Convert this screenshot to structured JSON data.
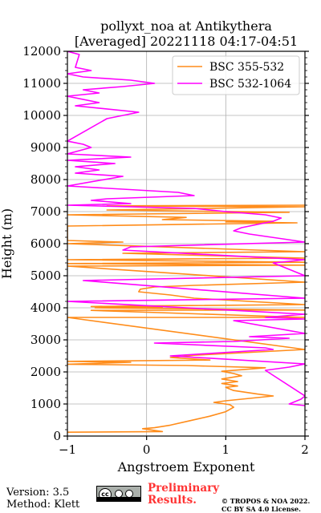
{
  "chart_data": {
    "type": "line",
    "title_lines": [
      "pollyxt_noa at Antikythera",
      "[Averaged] 20221118 04:17-04:51"
    ],
    "xlabel": "Angstroem Exponent",
    "ylabel": "Height (m)",
    "xlim": [
      -1,
      2
    ],
    "ylim": [
      0,
      12000
    ],
    "xticks": [
      -1,
      0,
      1,
      2
    ],
    "yticks": [
      0,
      1000,
      2000,
      3000,
      4000,
      5000,
      6000,
      7000,
      8000,
      9000,
      10000,
      11000,
      12000
    ],
    "grid": true,
    "legend_position": "top-right",
    "series": [
      {
        "name": "BSC 355-532",
        "color": "#ff8c1a",
        "points": [
          [
            -1.0,
            120
          ],
          [
            0.2,
            140
          ],
          [
            -0.05,
            230
          ],
          [
            0.1,
            260
          ],
          [
            0.3,
            340
          ],
          [
            0.55,
            480
          ],
          [
            0.8,
            620
          ],
          [
            1.0,
            760
          ],
          [
            1.1,
            900
          ],
          [
            1.05,
            980
          ],
          [
            0.85,
            1050
          ],
          [
            1.0,
            1100
          ],
          [
            1.4,
            1200
          ],
          [
            1.6,
            1250
          ],
          [
            1.4,
            1310
          ],
          [
            1.1,
            1420
          ],
          [
            1.0,
            1520
          ],
          [
            1.15,
            1560
          ],
          [
            0.95,
            1640
          ],
          [
            1.15,
            1700
          ],
          [
            0.95,
            1780
          ],
          [
            1.2,
            1880
          ],
          [
            1.1,
            1950
          ],
          [
            0.95,
            2020
          ],
          [
            1.25,
            2080
          ],
          [
            1.5,
            2130
          ],
          [
            0.5,
            2200
          ],
          [
            -1.0,
            2240
          ],
          [
            -0.2,
            2300
          ],
          [
            -1.0,
            2330
          ],
          [
            0.8,
            2370
          ],
          [
            0.3,
            2450
          ],
          [
            0.6,
            2520
          ],
          [
            2.0,
            2700
          ],
          [
            -1.0,
            3700
          ],
          [
            2.0,
            3700
          ],
          [
            -0.7,
            3920
          ],
          [
            2.0,
            3930
          ],
          [
            -0.65,
            4000
          ],
          [
            0.2,
            4020
          ],
          [
            -0.7,
            4040
          ],
          [
            0.0,
            4060
          ],
          [
            2.0,
            4100
          ],
          [
            0.6,
            4300
          ],
          [
            0.3,
            4400
          ],
          [
            -0.1,
            4500
          ],
          [
            -0.08,
            4580
          ],
          [
            0.1,
            4650
          ],
          [
            0.6,
            4700
          ],
          [
            2.0,
            4800
          ],
          [
            -1.0,
            5300
          ],
          [
            2.0,
            5330
          ],
          [
            -1.0,
            5380
          ],
          [
            2.0,
            5420
          ],
          [
            -1.0,
            5500
          ],
          [
            2.0,
            5550
          ],
          [
            -0.3,
            5700
          ],
          [
            2.0,
            5750
          ],
          [
            -1.0,
            6000
          ],
          [
            -0.3,
            6050
          ],
          [
            -1.0,
            6100
          ],
          [
            -1.0,
            6550
          ],
          [
            1.9,
            6650
          ],
          [
            1.0,
            6680
          ],
          [
            1.6,
            6700
          ],
          [
            0.2,
            6750
          ],
          [
            0.5,
            6820
          ],
          [
            -1.0,
            6900
          ],
          [
            1.8,
            6980
          ],
          [
            -0.5,
            7050
          ],
          [
            2.0,
            7150
          ],
          [
            -0.5,
            7180
          ],
          [
            2.0,
            7200
          ]
        ]
      },
      {
        "name": "BSC 532-1064",
        "color": "#ff00ff",
        "points": [
          [
            2.0,
            950
          ],
          [
            1.8,
            1000
          ],
          [
            1.95,
            1150
          ],
          [
            2.0,
            1250
          ],
          [
            1.5,
            2050
          ],
          [
            1.8,
            2150
          ],
          [
            2.0,
            2250
          ],
          [
            0.3,
            2500
          ],
          [
            1.6,
            2700
          ],
          [
            1.5,
            2750
          ],
          [
            0.1,
            2900
          ],
          [
            1.1,
            2950
          ],
          [
            1.8,
            3050
          ],
          [
            1.3,
            3100
          ],
          [
            2.0,
            3200
          ],
          [
            1.1,
            3600
          ],
          [
            2.0,
            3650
          ],
          [
            1.5,
            3700
          ],
          [
            2.0,
            3800
          ],
          [
            -1.0,
            4200
          ],
          [
            2.0,
            4300
          ],
          [
            -0.8,
            4850
          ],
          [
            2.0,
            5000
          ],
          [
            1.7,
            5300
          ],
          [
            1.6,
            5400
          ],
          [
            2.0,
            5500
          ],
          [
            -0.3,
            5800
          ],
          [
            -0.2,
            5900
          ],
          [
            2.0,
            6050
          ],
          [
            1.3,
            6300
          ],
          [
            1.1,
            6400
          ],
          [
            1.2,
            6500
          ],
          [
            1.6,
            6700
          ],
          [
            1.7,
            6800
          ],
          [
            1.5,
            6900
          ],
          [
            1.0,
            7000
          ],
          [
            0.6,
            7100
          ],
          [
            -1.0,
            7200
          ],
          [
            -0.2,
            7250
          ],
          [
            -0.7,
            7350
          ],
          [
            -0.5,
            7400
          ],
          [
            0.6,
            7500
          ],
          [
            0.4,
            7600
          ],
          [
            -1.0,
            7800
          ],
          [
            -0.3,
            8100
          ],
          [
            -0.9,
            8200
          ],
          [
            -0.6,
            8300
          ],
          [
            -0.9,
            8400
          ],
          [
            -0.4,
            8500
          ],
          [
            -1.0,
            8600
          ],
          [
            -0.2,
            8700
          ],
          [
            -1.0,
            8800
          ],
          [
            -0.7,
            9000
          ],
          [
            -0.8,
            9100
          ],
          [
            -1.0,
            9200
          ],
          [
            -0.5,
            9900
          ],
          [
            -0.1,
            10100
          ],
          [
            -0.9,
            10300
          ],
          [
            -0.6,
            10400
          ],
          [
            -1.0,
            10600
          ],
          [
            -0.6,
            10700
          ],
          [
            -0.8,
            10800
          ],
          [
            -0.3,
            10900
          ],
          [
            0.1,
            11000
          ],
          [
            -0.2,
            11100
          ],
          [
            -0.8,
            11200
          ],
          [
            -1.0,
            11300
          ],
          [
            -0.7,
            11400
          ],
          [
            -0.9,
            11500
          ],
          [
            -0.85,
            11900
          ],
          [
            -1.0,
            12000
          ]
        ]
      }
    ]
  },
  "footer": {
    "version": "Version: 3.5",
    "method": "Method: Klett",
    "cc_label": "cc",
    "preliminary_line1": "Preliminary",
    "preliminary_line2": "Results.",
    "license_line1": "© TROPOS & NOA 2022.",
    "license_line2": "CC BY SA 4.0 License."
  }
}
